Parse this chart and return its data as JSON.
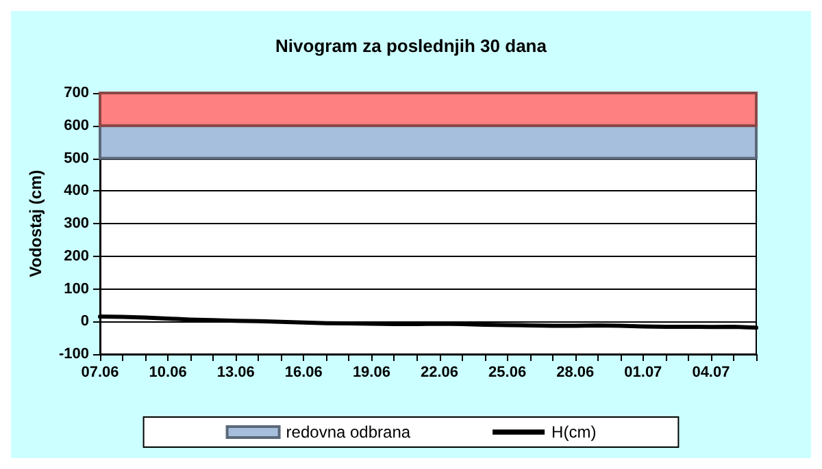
{
  "chart_data": {
    "type": "line",
    "title": "Nivogram za poslednjih 30 dana",
    "ylabel": "Vodostaj (cm)",
    "x": [
      "--06-07",
      "--06-08",
      "--06-09",
      "--06-10",
      "--06-11",
      "--06-12",
      "--06-13",
      "--06-14",
      "--06-15",
      "--06-16",
      "--06-17",
      "--06-18",
      "--06-19",
      "--06-20",
      "--06-21",
      "--06-22",
      "--06-23",
      "--06-24",
      "--06-25",
      "--06-26",
      "--06-27",
      "--06-28",
      "--06-29",
      "--06-30",
      "--07-01",
      "--07-02",
      "--07-03",
      "--07-04",
      "--07-05",
      "--07-06"
    ],
    "series": [
      {
        "name": "H(cm)",
        "color": "#000000",
        "values": [
          15,
          14,
          12,
          9,
          6,
          4,
          2,
          1,
          -1,
          -3,
          -5,
          -6,
          -7,
          -8,
          -8,
          -7,
          -8,
          -10,
          -11,
          -12,
          -13,
          -13,
          -12,
          -13,
          -15,
          -16,
          -16,
          -17,
          -16,
          -19
        ]
      }
    ],
    "xlim": [
      "--06-07",
      "--07-06"
    ],
    "xticks": [
      {
        "value": "--06-07",
        "label": "07.06"
      },
      {
        "value": "--06-10",
        "label": "10.06"
      },
      {
        "value": "--06-13",
        "label": "13.06"
      },
      {
        "value": "--06-16",
        "label": "16.06"
      },
      {
        "value": "--06-19",
        "label": "19.06"
      },
      {
        "value": "--06-22",
        "label": "22.06"
      },
      {
        "value": "--06-25",
        "label": "25.06"
      },
      {
        "value": "--06-28",
        "label": "28.06"
      },
      {
        "value": "--07-01",
        "label": "01.07"
      },
      {
        "value": "--07-04",
        "label": "04.07"
      }
    ],
    "ylim": [
      -100,
      700
    ],
    "yticks": [
      -100,
      0,
      100,
      200,
      300,
      400,
      500,
      600,
      700
    ],
    "bands": [
      {
        "axis": "y",
        "from": 500,
        "to": 600,
        "label": "redovna odbrana",
        "color": "#a6bfdd"
      },
      {
        "axis": "y",
        "from": 600,
        "to": 700,
        "color": "#ff8080"
      }
    ],
    "grid": "y",
    "legend": "bottom",
    "marker": "none",
    "line_style": "solid"
  }
}
